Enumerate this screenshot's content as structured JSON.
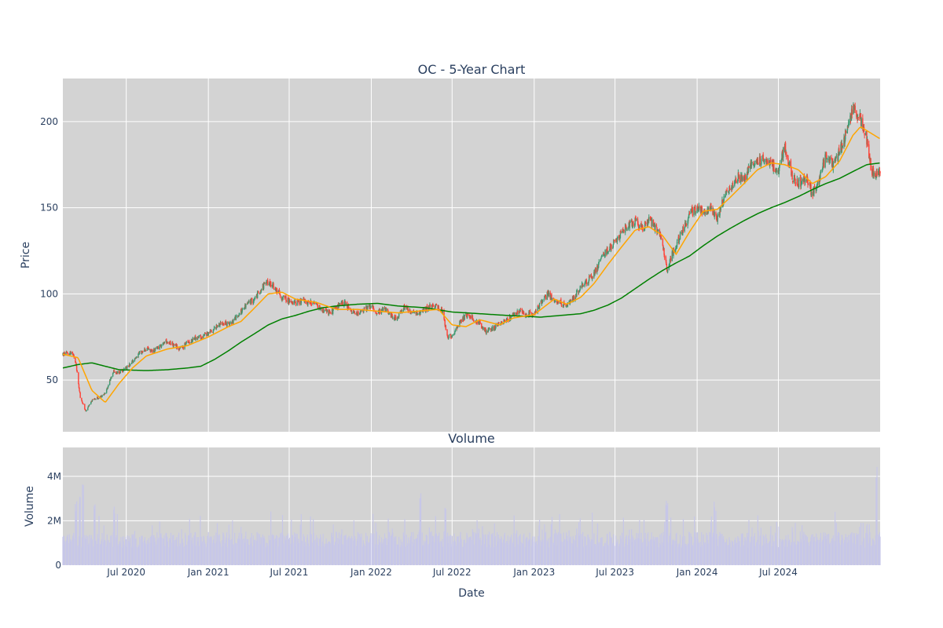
{
  "chart_data": [
    {
      "type": "candlestick",
      "title": "OC - 5-Year Chart",
      "ylabel": "Price",
      "x_range": [
        "2020-02-10",
        "2025-02-14"
      ],
      "ylim": [
        20,
        225
      ],
      "y_ticks": [
        50,
        100,
        150,
        200
      ],
      "grid": true,
      "plot_bg": "#d3d3d3",
      "increasing_color": "#3d9970",
      "decreasing_color": "#ff4136",
      "price_path": [
        [
          "2020-02-10",
          65
        ],
        [
          "2020-03-01",
          66
        ],
        [
          "2020-03-10",
          60
        ],
        [
          "2020-03-20",
          40
        ],
        [
          "2020-04-01",
          32
        ],
        [
          "2020-04-15",
          38
        ],
        [
          "2020-05-01",
          40
        ],
        [
          "2020-05-15",
          42
        ],
        [
          "2020-06-01",
          55
        ],
        [
          "2020-06-15",
          54
        ],
        [
          "2020-07-01",
          57
        ],
        [
          "2020-07-15",
          61
        ],
        [
          "2020-08-01",
          66
        ],
        [
          "2020-08-15",
          68
        ],
        [
          "2020-09-01",
          67
        ],
        [
          "2020-09-15",
          70
        ],
        [
          "2020-10-01",
          73
        ],
        [
          "2020-10-15",
          70
        ],
        [
          "2020-11-01",
          68
        ],
        [
          "2020-11-15",
          72
        ],
        [
          "2020-12-01",
          74
        ],
        [
          "2020-12-15",
          75
        ],
        [
          "2021-01-01",
          77
        ],
        [
          "2021-01-15",
          80
        ],
        [
          "2021-02-01",
          84
        ],
        [
          "2021-02-15",
          82
        ],
        [
          "2021-03-01",
          85
        ],
        [
          "2021-03-15",
          90
        ],
        [
          "2021-04-01",
          95
        ],
        [
          "2021-04-15",
          97
        ],
        [
          "2021-05-01",
          104
        ],
        [
          "2021-05-15",
          107
        ],
        [
          "2021-06-01",
          103
        ],
        [
          "2021-06-15",
          98
        ],
        [
          "2021-07-01",
          96
        ],
        [
          "2021-07-15",
          95
        ],
        [
          "2021-08-01",
          96
        ],
        [
          "2021-08-15",
          95
        ],
        [
          "2021-09-01",
          93
        ],
        [
          "2021-09-15",
          90
        ],
        [
          "2021-10-01",
          89
        ],
        [
          "2021-10-15",
          92
        ],
        [
          "2021-11-01",
          95
        ],
        [
          "2021-11-15",
          90
        ],
        [
          "2021-12-01",
          88
        ],
        [
          "2021-12-15",
          91
        ],
        [
          "2022-01-01",
          93
        ],
        [
          "2022-01-15",
          89
        ],
        [
          "2022-02-01",
          91
        ],
        [
          "2022-02-15",
          87
        ],
        [
          "2022-03-01",
          86
        ],
        [
          "2022-03-15",
          92
        ],
        [
          "2022-04-01",
          90
        ],
        [
          "2022-04-15",
          88
        ],
        [
          "2022-05-01",
          91
        ],
        [
          "2022-05-15",
          93
        ],
        [
          "2022-06-01",
          92
        ],
        [
          "2022-06-10",
          90
        ],
        [
          "2022-06-20",
          75
        ],
        [
          "2022-07-01",
          76
        ],
        [
          "2022-07-15",
          82
        ],
        [
          "2022-08-01",
          88
        ],
        [
          "2022-08-15",
          86
        ],
        [
          "2022-09-01",
          83
        ],
        [
          "2022-09-15",
          78
        ],
        [
          "2022-10-01",
          80
        ],
        [
          "2022-10-15",
          83
        ],
        [
          "2022-11-01",
          85
        ],
        [
          "2022-11-15",
          88
        ],
        [
          "2022-12-01",
          90
        ],
        [
          "2022-12-15",
          88
        ],
        [
          "2023-01-01",
          89
        ],
        [
          "2023-01-15",
          94
        ],
        [
          "2023-02-01",
          100
        ],
        [
          "2023-02-15",
          96
        ],
        [
          "2023-03-01",
          95
        ],
        [
          "2023-03-15",
          93
        ],
        [
          "2023-04-01",
          98
        ],
        [
          "2023-04-15",
          104
        ],
        [
          "2023-05-01",
          108
        ],
        [
          "2023-05-15",
          112
        ],
        [
          "2023-06-01",
          120
        ],
        [
          "2023-06-15",
          126
        ],
        [
          "2023-07-01",
          130
        ],
        [
          "2023-07-15",
          135
        ],
        [
          "2023-08-01",
          141
        ],
        [
          "2023-08-15",
          142
        ],
        [
          "2023-09-01",
          138
        ],
        [
          "2023-09-15",
          143
        ],
        [
          "2023-10-01",
          138
        ],
        [
          "2023-10-15",
          130
        ],
        [
          "2023-10-25",
          114
        ],
        [
          "2023-11-01",
          120
        ],
        [
          "2023-11-15",
          128
        ],
        [
          "2023-12-01",
          138
        ],
        [
          "2023-12-15",
          147
        ],
        [
          "2024-01-01",
          149
        ],
        [
          "2024-01-15",
          148
        ],
        [
          "2024-02-01",
          150
        ],
        [
          "2024-02-15",
          144
        ],
        [
          "2024-03-01",
          155
        ],
        [
          "2024-03-15",
          162
        ],
        [
          "2024-04-01",
          168
        ],
        [
          "2024-04-15",
          166
        ],
        [
          "2024-05-01",
          175
        ],
        [
          "2024-05-15",
          178
        ],
        [
          "2024-06-01",
          177
        ],
        [
          "2024-06-15",
          175
        ],
        [
          "2024-07-01",
          172
        ],
        [
          "2024-07-15",
          185
        ],
        [
          "2024-08-01",
          168
        ],
        [
          "2024-08-15",
          164
        ],
        [
          "2024-09-01",
          168
        ],
        [
          "2024-09-15",
          158
        ],
        [
          "2024-10-01",
          166
        ],
        [
          "2024-10-15",
          180
        ],
        [
          "2024-11-01",
          175
        ],
        [
          "2024-11-15",
          182
        ],
        [
          "2024-12-01",
          195
        ],
        [
          "2024-12-15",
          207
        ],
        [
          "2025-01-01",
          202
        ],
        [
          "2025-01-15",
          190
        ],
        [
          "2025-01-25",
          172
        ],
        [
          "2025-02-14",
          169
        ]
      ],
      "ma_fast": {
        "color": "#ffa500",
        "points": [
          [
            "2020-02-10",
            65
          ],
          [
            "2020-03-15",
            63
          ],
          [
            "2020-04-15",
            44
          ],
          [
            "2020-05-15",
            37
          ],
          [
            "2020-06-15",
            48
          ],
          [
            "2020-07-15",
            57
          ],
          [
            "2020-08-15",
            64
          ],
          [
            "2020-10-01",
            68
          ],
          [
            "2020-11-15",
            70
          ],
          [
            "2021-01-01",
            75
          ],
          [
            "2021-02-15",
            81
          ],
          [
            "2021-03-15",
            84
          ],
          [
            "2021-04-15",
            92
          ],
          [
            "2021-05-15",
            100
          ],
          [
            "2021-06-15",
            101
          ],
          [
            "2021-07-15",
            97
          ],
          [
            "2021-09-01",
            95
          ],
          [
            "2021-10-15",
            91
          ],
          [
            "2021-12-01",
            91
          ],
          [
            "2022-01-15",
            90
          ],
          [
            "2022-03-01",
            89
          ],
          [
            "2022-04-15",
            90
          ],
          [
            "2022-06-01",
            91
          ],
          [
            "2022-07-01",
            82
          ],
          [
            "2022-08-01",
            81
          ],
          [
            "2022-09-01",
            85
          ],
          [
            "2022-10-15",
            82
          ],
          [
            "2022-11-15",
            86
          ],
          [
            "2023-01-01",
            88
          ],
          [
            "2023-02-15",
            97
          ],
          [
            "2023-03-15",
            94
          ],
          [
            "2023-04-15",
            98
          ],
          [
            "2023-05-15",
            106
          ],
          [
            "2023-06-15",
            117
          ],
          [
            "2023-07-15",
            127
          ],
          [
            "2023-08-15",
            137
          ],
          [
            "2023-09-15",
            139
          ],
          [
            "2023-10-15",
            134
          ],
          [
            "2023-11-15",
            123
          ],
          [
            "2023-12-15",
            136
          ],
          [
            "2024-01-15",
            148
          ],
          [
            "2024-02-15",
            149
          ],
          [
            "2024-03-15",
            156
          ],
          [
            "2024-04-15",
            164
          ],
          [
            "2024-05-15",
            172
          ],
          [
            "2024-06-15",
            176
          ],
          [
            "2024-07-15",
            175
          ],
          [
            "2024-08-15",
            172
          ],
          [
            "2024-09-15",
            164
          ],
          [
            "2024-10-15",
            168
          ],
          [
            "2024-11-15",
            177
          ],
          [
            "2024-12-15",
            192
          ],
          [
            "2025-01-01",
            197
          ],
          [
            "2025-02-14",
            190
          ]
        ]
      },
      "ma_slow": {
        "color": "#008000",
        "points": [
          [
            "2020-02-10",
            57
          ],
          [
            "2020-03-15",
            59
          ],
          [
            "2020-04-15",
            60
          ],
          [
            "2020-05-15",
            58
          ],
          [
            "2020-06-15",
            56
          ],
          [
            "2020-08-15",
            55.5
          ],
          [
            "2020-10-01",
            56
          ],
          [
            "2020-11-15",
            57
          ],
          [
            "2020-12-15",
            58
          ],
          [
            "2021-01-15",
            62
          ],
          [
            "2021-02-15",
            67
          ],
          [
            "2021-03-15",
            72
          ],
          [
            "2021-04-15",
            77
          ],
          [
            "2021-05-15",
            82
          ],
          [
            "2021-06-15",
            85.5
          ],
          [
            "2021-07-15",
            87.5
          ],
          [
            "2021-08-15",
            90
          ],
          [
            "2021-09-15",
            92
          ],
          [
            "2021-10-15",
            93
          ],
          [
            "2021-12-01",
            94
          ],
          [
            "2022-01-15",
            94.5
          ],
          [
            "2022-03-01",
            93
          ],
          [
            "2022-05-01",
            92
          ],
          [
            "2022-07-01",
            89.5
          ],
          [
            "2022-09-01",
            88.5
          ],
          [
            "2022-11-01",
            87.5
          ],
          [
            "2022-12-15",
            87
          ],
          [
            "2023-01-15",
            86.5
          ],
          [
            "2023-03-01",
            87.5
          ],
          [
            "2023-04-15",
            88.5
          ],
          [
            "2023-05-15",
            90.5
          ],
          [
            "2023-06-15",
            93.5
          ],
          [
            "2023-07-15",
            97.5
          ],
          [
            "2023-08-15",
            103
          ],
          [
            "2023-09-15",
            108.5
          ],
          [
            "2023-10-15",
            113.5
          ],
          [
            "2023-11-15",
            118
          ],
          [
            "2023-12-15",
            122
          ],
          [
            "2024-01-15",
            128
          ],
          [
            "2024-02-15",
            133.5
          ],
          [
            "2024-03-15",
            138
          ],
          [
            "2024-04-15",
            142.5
          ],
          [
            "2024-05-15",
            146.5
          ],
          [
            "2024-06-15",
            150
          ],
          [
            "2024-07-15",
            153
          ],
          [
            "2024-08-15",
            156.5
          ],
          [
            "2024-09-15",
            160.5
          ],
          [
            "2024-10-15",
            164
          ],
          [
            "2024-11-15",
            167
          ],
          [
            "2024-12-15",
            171
          ],
          [
            "2025-01-15",
            175
          ],
          [
            "2025-02-14",
            176
          ]
        ]
      }
    },
    {
      "type": "bar",
      "title": "Volume",
      "xlabel": "Date",
      "ylabel": "Volume",
      "ylim": [
        0,
        5300000
      ],
      "y_ticks": [
        0,
        2000000,
        4000000
      ],
      "y_tick_labels": [
        "0",
        "2M",
        "4M"
      ],
      "x_ticks": [
        [
          "2020-07-01",
          "Jul 2020"
        ],
        [
          "2021-01-01",
          "Jan 2021"
        ],
        [
          "2021-07-01",
          "Jul 2021"
        ],
        [
          "2022-01-01",
          "Jan 2022"
        ],
        [
          "2022-07-01",
          "Jul 2022"
        ],
        [
          "2023-01-01",
          "Jan 2023"
        ],
        [
          "2023-07-01",
          "Jul 2023"
        ],
        [
          "2024-01-01",
          "Jan 2024"
        ],
        [
          "2024-07-01",
          "Jul 2024"
        ]
      ],
      "bar_color": "#c7c7e8",
      "plot_bg": "#d3d3d3",
      "volume_spikes": [
        [
          "2020-03-10",
          3000000
        ],
        [
          "2020-03-20",
          3300000
        ],
        [
          "2020-03-27",
          3700000
        ],
        [
          "2020-04-20",
          2800000
        ],
        [
          "2020-06-05",
          2900000
        ],
        [
          "2022-04-22",
          3300000
        ],
        [
          "2022-06-17",
          2800000
        ],
        [
          "2023-02-10",
          2200000
        ],
        [
          "2023-10-25",
          3100000
        ],
        [
          "2024-02-10",
          2900000
        ],
        [
          "2025-02-07",
          4900000
        ]
      ]
    }
  ]
}
